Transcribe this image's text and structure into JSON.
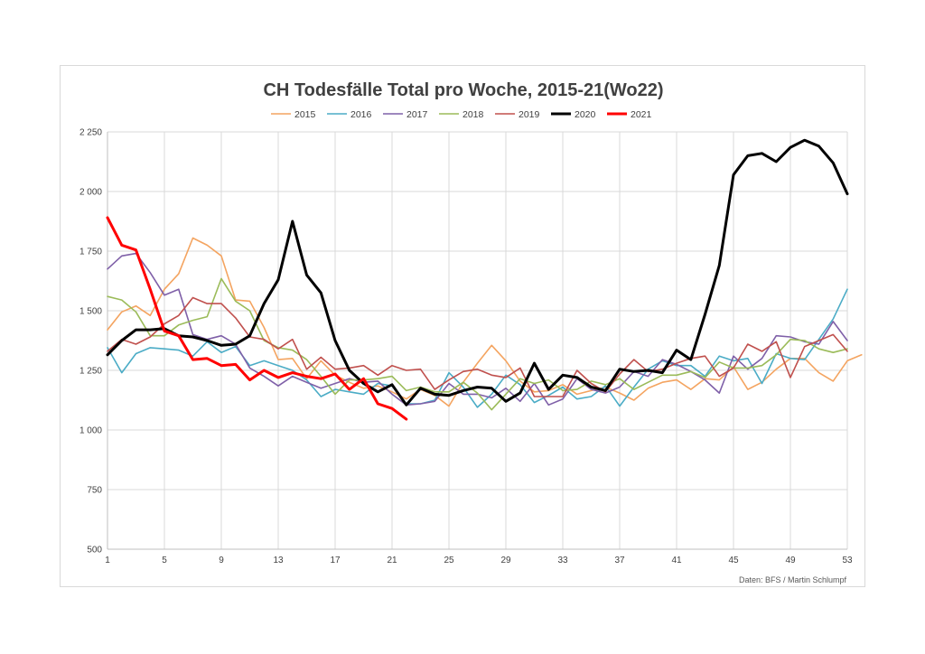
{
  "chart_data": {
    "type": "line",
    "title": "CH Todesfälle Total pro Woche, 2015-21(Wo22)",
    "xlabel": "",
    "ylabel": "",
    "xlim": [
      1,
      53
    ],
    "ylim": [
      500,
      2250
    ],
    "x_ticks": [
      "1",
      "5",
      "9",
      "13",
      "17",
      "21",
      "25",
      "29",
      "33",
      "37",
      "41",
      "45",
      "49",
      "53"
    ],
    "y_ticks": [
      "500",
      "750",
      "1 000",
      "1 250",
      "1 500",
      "1 750",
      "2 000",
      "2 250"
    ],
    "y_tick_values": [
      500,
      750,
      1000,
      1250,
      1500,
      1750,
      2000,
      2250
    ],
    "x_tick_values": [
      1,
      5,
      9,
      13,
      17,
      21,
      25,
      29,
      33,
      37,
      41,
      45,
      49,
      53
    ],
    "grid": true,
    "legend_position": "top",
    "source": "Daten:  BFS / Martin Schlumpf",
    "series": [
      {
        "name": "2015",
        "color": "#f4a460",
        "width": 1.6,
        "values": [
          1420,
          1495,
          1520,
          1480,
          1590,
          1655,
          1805,
          1775,
          1730,
          1545,
          1540,
          1430,
          1295,
          1300,
          1215,
          1290,
          1230,
          1200,
          1175,
          1185,
          1160,
          1130,
          1170,
          1145,
          1100,
          1200,
          1280,
          1355,
          1290,
          1205,
          1160,
          1165,
          1190,
          1150,
          1165,
          1180,
          1155,
          1125,
          1175,
          1200,
          1210,
          1170,
          1215,
          1210,
          1265,
          1170,
          1200,
          1255,
          1300,
          1300,
          1240,
          1205,
          1290,
          1315
        ]
      },
      {
        "name": "2016",
        "color": "#4bacc6",
        "width": 1.6,
        "values": [
          1345,
          1240,
          1320,
          1345,
          1340,
          1335,
          1310,
          1370,
          1325,
          1350,
          1270,
          1290,
          1270,
          1250,
          1210,
          1140,
          1170,
          1160,
          1150,
          1195,
          1185,
          1110,
          1110,
          1125,
          1240,
          1180,
          1095,
          1150,
          1230,
          1190,
          1115,
          1145,
          1180,
          1130,
          1140,
          1185,
          1100,
          1180,
          1255,
          1290,
          1270,
          1270,
          1225,
          1310,
          1290,
          1300,
          1195,
          1320,
          1300,
          1295,
          1380,
          1465,
          1590
        ]
      },
      {
        "name": "2017",
        "color": "#7f60a8",
        "width": 1.6,
        "values": [
          1675,
          1730,
          1740,
          1660,
          1565,
          1590,
          1400,
          1380,
          1395,
          1360,
          1260,
          1225,
          1185,
          1225,
          1200,
          1175,
          1195,
          1215,
          1200,
          1205,
          1150,
          1105,
          1110,
          1120,
          1195,
          1150,
          1150,
          1135,
          1175,
          1120,
          1195,
          1105,
          1130,
          1215,
          1170,
          1155,
          1180,
          1245,
          1225,
          1295,
          1275,
          1245,
          1210,
          1155,
          1310,
          1255,
          1300,
          1395,
          1390,
          1370,
          1360,
          1455,
          1375
        ]
      },
      {
        "name": "2018",
        "color": "#9bbb59",
        "width": 1.6,
        "values": [
          1560,
          1545,
          1495,
          1395,
          1395,
          1440,
          1460,
          1475,
          1635,
          1540,
          1500,
          1375,
          1345,
          1335,
          1295,
          1225,
          1150,
          1210,
          1210,
          1215,
          1225,
          1165,
          1180,
          1160,
          1160,
          1200,
          1155,
          1085,
          1150,
          1215,
          1195,
          1210,
          1165,
          1170,
          1205,
          1190,
          1215,
          1170,
          1200,
          1230,
          1230,
          1245,
          1220,
          1285,
          1260,
          1260,
          1270,
          1315,
          1380,
          1375,
          1340,
          1325,
          1340
        ]
      },
      {
        "name": "2019",
        "color": "#c0504d",
        "width": 1.6,
        "values": [
          1330,
          1380,
          1360,
          1390,
          1445,
          1480,
          1555,
          1530,
          1530,
          1470,
          1390,
          1380,
          1340,
          1380,
          1255,
          1305,
          1255,
          1260,
          1270,
          1230,
          1270,
          1250,
          1255,
          1170,
          1210,
          1245,
          1255,
          1230,
          1220,
          1260,
          1140,
          1140,
          1140,
          1250,
          1195,
          1160,
          1235,
          1295,
          1245,
          1255,
          1280,
          1300,
          1310,
          1225,
          1260,
          1360,
          1330,
          1370,
          1220,
          1350,
          1375,
          1400,
          1330
        ]
      },
      {
        "name": "2020",
        "color": "#000000",
        "width": 3,
        "values": [
          1315,
          1375,
          1420,
          1420,
          1425,
          1395,
          1390,
          1375,
          1355,
          1360,
          1395,
          1530,
          1630,
          1875,
          1650,
          1575,
          1375,
          1250,
          1195,
          1160,
          1190,
          1105,
          1175,
          1150,
          1145,
          1165,
          1180,
          1175,
          1120,
          1155,
          1280,
          1170,
          1230,
          1220,
          1180,
          1165,
          1255,
          1245,
          1250,
          1240,
          1335,
          1295,
          1485,
          1690,
          2070,
          2150,
          2160,
          2125,
          2185,
          2215,
          2190,
          2120,
          1990
        ]
      },
      {
        "name": "2021",
        "color": "#ff0000",
        "width": 3,
        "values": [
          1890,
          1775,
          1755,
          1590,
          1415,
          1395,
          1295,
          1300,
          1270,
          1275,
          1210,
          1250,
          1220,
          1240,
          1225,
          1215,
          1235,
          1170,
          1215,
          1110,
          1090,
          1045
        ]
      }
    ]
  }
}
